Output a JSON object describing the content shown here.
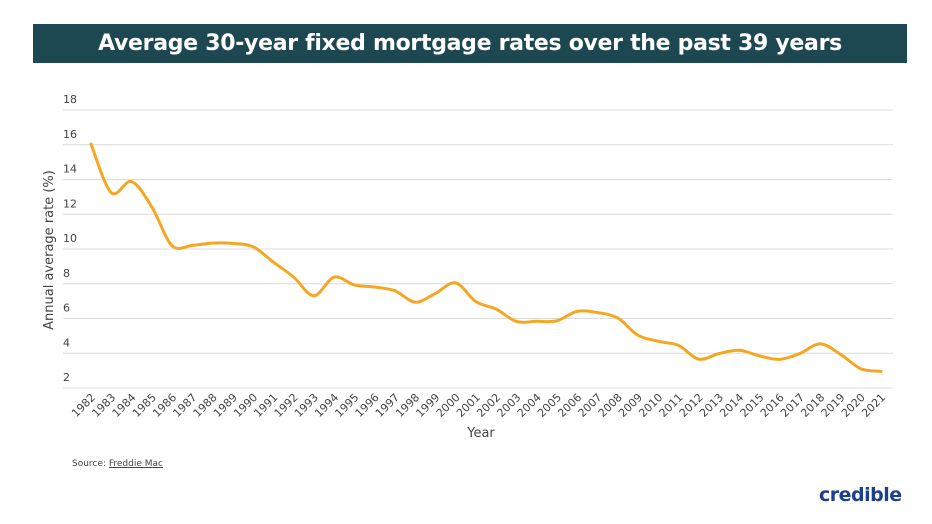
{
  "chart_data": {
    "type": "line",
    "title": "Average 30-year fixed mortgage rates over the past 39 years",
    "xlabel": "Year",
    "ylabel": "Annual average rate (%)",
    "ylim": [
      2,
      18
    ],
    "yticks": [
      2,
      4,
      6,
      8,
      10,
      12,
      14,
      16,
      18
    ],
    "grid": true,
    "line_color": "#f5a623",
    "x": [
      "1982",
      "1983",
      "1984",
      "1985",
      "1986",
      "1987",
      "1988",
      "1989",
      "1990",
      "1991",
      "1992",
      "1993",
      "1994",
      "1995",
      "1996",
      "1997",
      "1998",
      "1999",
      "2000",
      "2001",
      "2002",
      "2003",
      "2004",
      "2005",
      "2006",
      "2007",
      "2008",
      "2009",
      "2010",
      "2011",
      "2012",
      "2013",
      "2014",
      "2015",
      "2016",
      "2017",
      "2018",
      "2019",
      "2020",
      "2021"
    ],
    "values": [
      16.04,
      13.24,
      13.88,
      12.43,
      10.19,
      10.21,
      10.34,
      10.32,
      10.13,
      9.25,
      8.39,
      7.31,
      8.38,
      7.93,
      7.81,
      7.6,
      6.94,
      7.44,
      8.05,
      6.97,
      6.54,
      5.83,
      5.84,
      5.87,
      6.41,
      6.34,
      6.03,
      5.04,
      4.69,
      4.45,
      3.66,
      3.98,
      4.17,
      3.85,
      3.65,
      3.99,
      4.54,
      3.94,
      3.11,
      2.96
    ]
  },
  "footer": {
    "source_label": "Source:",
    "source_link": "Freddie Mac",
    "logo": "credible"
  },
  "colors": {
    "banner": "#1d4852",
    "line": "#f5a623",
    "logo": "#1e3f8a"
  }
}
